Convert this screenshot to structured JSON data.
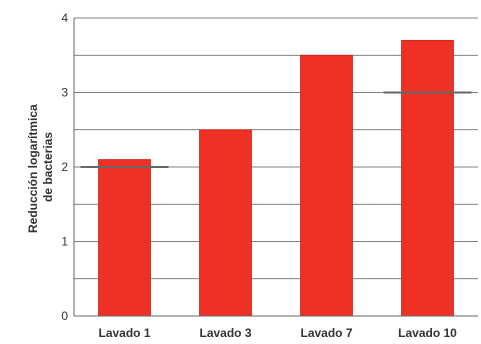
{
  "chart_data": {
    "type": "bar",
    "categories": [
      "Lavado 1",
      "Lavado 3",
      "Lavado 7",
      "Lavado 10"
    ],
    "values": [
      2.1,
      2.5,
      3.5,
      3.7
    ],
    "reference_marks": [
      2.0,
      null,
      null,
      3.0
    ],
    "ylabel_line1": "Reducción logarítmica",
    "ylabel_line2": "de bacterias",
    "ylim": [
      0,
      4
    ],
    "yticks": [
      "0",
      "1",
      "2",
      "3",
      "4"
    ],
    "grid": true,
    "colors": {
      "bar": "#EE3124",
      "bar_edge": "#c8261b",
      "grid": "#555555",
      "reference": "#666666",
      "axis": "#666666"
    }
  }
}
